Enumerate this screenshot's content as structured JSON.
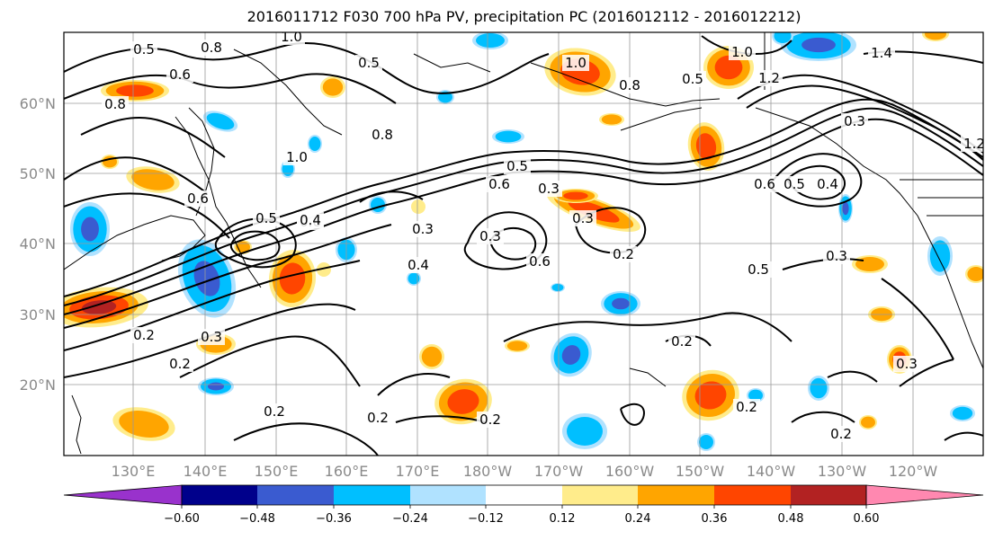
{
  "title": "2016011712 F030 700 hPa PV, precipitation PC (2016012112 - 2016012212)",
  "lat_labels": [
    "60°N",
    "50°N",
    "40°N",
    "30°N",
    "20°N"
  ],
  "lon_labels": [
    "130°E",
    "140°E",
    "150°E",
    "160°E",
    "170°E",
    "180°W",
    "170°W",
    "160°W",
    "150°W",
    "140°W",
    "130°W",
    "120°W"
  ],
  "contour_labels": [
    "0.5",
    "0.8",
    "1.0",
    "0.6",
    "0.8",
    "0.5",
    "1.0",
    "1.4",
    "1.2",
    "0.3",
    "1.0",
    "0.8",
    "0.5",
    "0.6",
    "0.4",
    "0.3",
    "1.0",
    "0.5",
    "0.6",
    "0.8",
    "0.5",
    "0.6",
    "0.4",
    "0.3",
    "0.6",
    "0.3",
    "0.2",
    "0.5",
    "0.3",
    "0.4",
    "0.3",
    "0.2",
    "0.3",
    "0.2",
    "0.2",
    "0.2",
    "0.2",
    "0.2",
    "0.2",
    "0.3",
    "0.2",
    "0.5",
    "0.6",
    "1.2"
  ],
  "colorbar": {
    "colors": [
      "#9932cc",
      "#00008b",
      "#3a5bd0",
      "#00bfff",
      "#b0e2ff",
      "#ffffff",
      "#ffec8b",
      "#ffa500",
      "#ff4500",
      "#b22222",
      "#ff88b0"
    ],
    "tick_labels": [
      "−0.60",
      "−0.48",
      "−0.36",
      "−0.24",
      "−0.12",
      "0.12",
      "0.24",
      "0.36",
      "0.48",
      "0.60"
    ]
  },
  "chart_data": {
    "type": "map",
    "title": "2016011712 F030 700 hPa PV, precipitation PC (2016012112 - 2016012212)",
    "longitude_range": [
      "~122°E",
      "~113°W"
    ],
    "latitude_range": [
      "~10°N",
      "~70°N"
    ],
    "contour_field": "700 hPa PV",
    "contour_levels": [
      0.2,
      0.3,
      0.4,
      0.5,
      0.6,
      0.8,
      1.0,
      1.2,
      1.4
    ],
    "fill_field": "precipitation PC",
    "fill_levels": [
      -0.6,
      -0.48,
      -0.36,
      -0.24,
      -0.12,
      0.12,
      0.24,
      0.36,
      0.48,
      0.6
    ],
    "colorbar_extend": "both"
  }
}
